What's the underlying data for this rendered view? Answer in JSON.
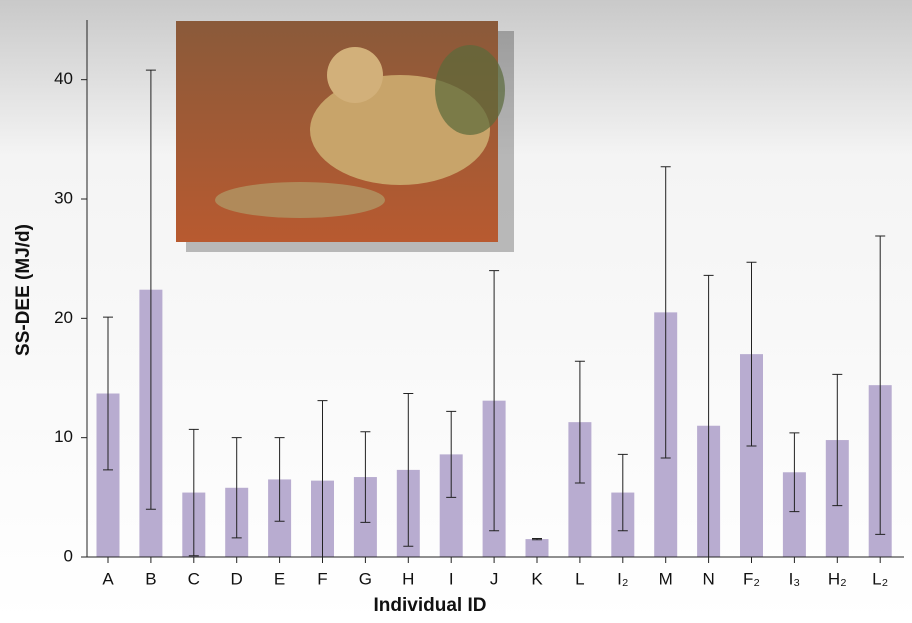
{
  "chart_data": {
    "type": "bar",
    "x_label": "Individual ID",
    "y_label": "SS-DEE (MJ/d)",
    "categories": [
      "A",
      "B",
      "C",
      "D",
      "E",
      "F",
      "G",
      "H",
      "I",
      "J",
      "K",
      "L",
      "I₂",
      "M",
      "N",
      "F₂",
      "I₃",
      "H₂",
      "L₂"
    ],
    "values": [
      13.7,
      22.4,
      5.4,
      5.8,
      6.5,
      6.4,
      6.7,
      7.3,
      8.6,
      13.1,
      1.5,
      11.3,
      5.4,
      20.5,
      11.0,
      17.0,
      7.1,
      9.8,
      14.4
    ],
    "errors": [
      6.4,
      18.4,
      5.3,
      4.2,
      3.5,
      6.7,
      3.8,
      6.4,
      3.6,
      10.9,
      0.05,
      5.1,
      3.2,
      12.2,
      12.6,
      7.7,
      3.3,
      5.5,
      12.5
    ],
    "color": "#b8acd0",
    "ylim": [
      0,
      45
    ],
    "yticks": [
      0,
      10,
      20,
      30,
      40
    ]
  }
}
